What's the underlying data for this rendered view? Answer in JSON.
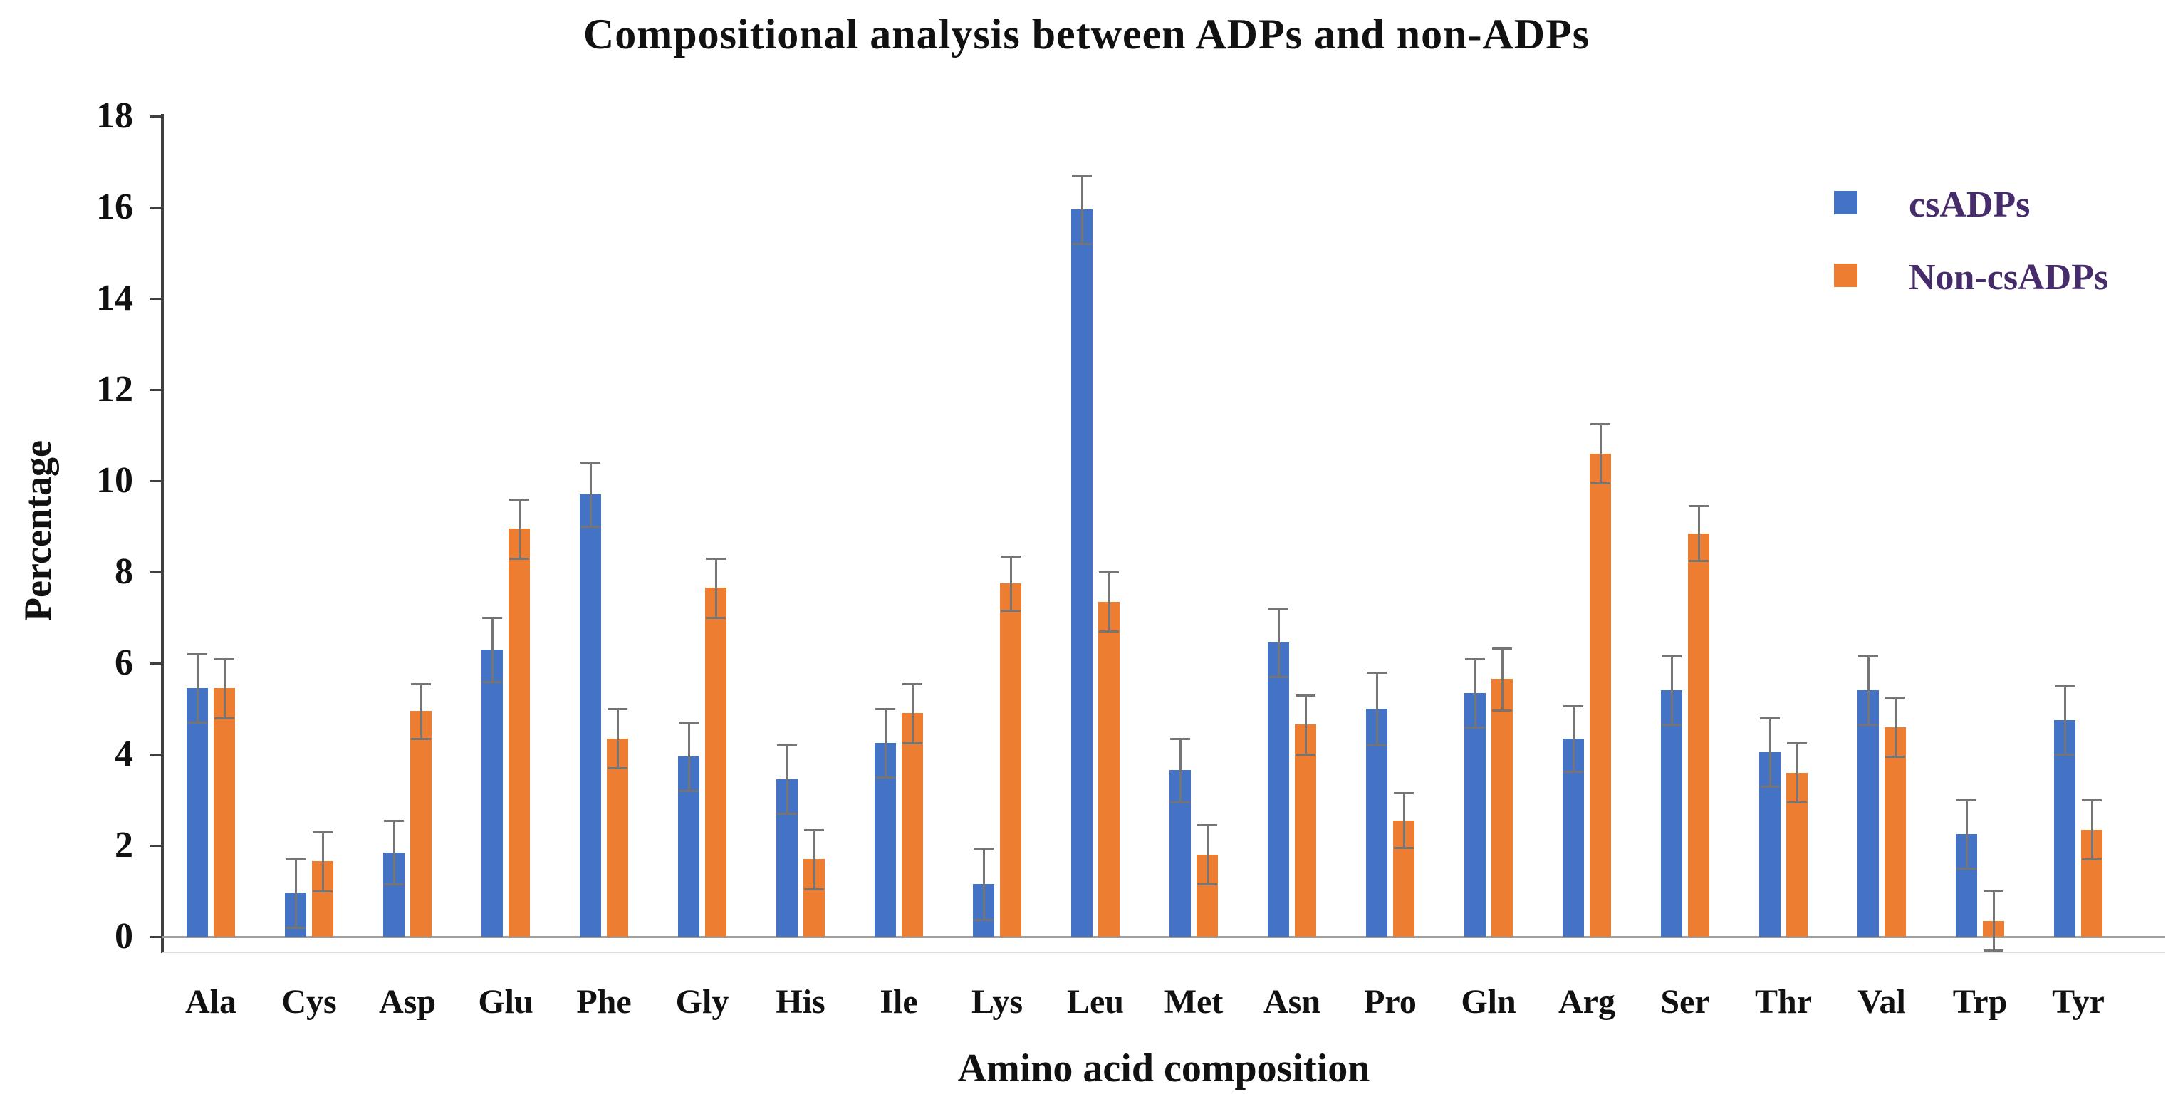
{
  "chart_data": {
    "type": "bar",
    "title": "Compositional analysis between ADPs and non-ADPs",
    "xlabel": "Amino acid composition",
    "ylabel": "Percentage",
    "ylim": [
      0,
      18
    ],
    "ytick_step": 2,
    "grid": false,
    "legend_position": "top-right",
    "categories": [
      "Ala",
      "Cys",
      "Asp",
      "Glu",
      "Phe",
      "Gly",
      "His",
      "Ile",
      "Lys",
      "Leu",
      "Met",
      "Asn",
      "Pro",
      "Gln",
      "Arg",
      "Ser",
      "Thr",
      "Val",
      "Trp",
      "Tyr"
    ],
    "series": [
      {
        "name": "csADPs",
        "color": "#4472C4",
        "values": [
          5.45,
          0.95,
          1.85,
          6.3,
          9.7,
          3.95,
          3.45,
          4.25,
          1.15,
          15.95,
          3.65,
          6.45,
          5.0,
          5.35,
          4.35,
          5.4,
          4.05,
          5.4,
          2.25,
          4.75
        ],
        "errors": [
          0.75,
          0.75,
          0.7,
          0.7,
          0.7,
          0.75,
          0.75,
          0.75,
          0.78,
          0.75,
          0.7,
          0.75,
          0.8,
          0.75,
          0.72,
          0.75,
          0.75,
          0.75,
          0.75,
          0.75
        ]
      },
      {
        "name": "Non-csADPs",
        "color": "#ED7D31",
        "values": [
          5.45,
          1.65,
          4.95,
          8.95,
          4.35,
          7.65,
          1.7,
          4.9,
          7.75,
          7.35,
          1.8,
          4.65,
          2.55,
          5.65,
          10.6,
          8.85,
          3.6,
          4.6,
          0.35,
          2.35
        ],
        "errors": [
          0.65,
          0.65,
          0.6,
          0.65,
          0.65,
          0.65,
          0.65,
          0.65,
          0.6,
          0.65,
          0.65,
          0.65,
          0.6,
          0.68,
          0.65,
          0.6,
          0.65,
          0.65,
          0.65,
          0.65
        ]
      }
    ],
    "error_bar_color": "#757575",
    "axis_color": "#3f3f3f",
    "legend_text_color": "#472c6b"
  }
}
